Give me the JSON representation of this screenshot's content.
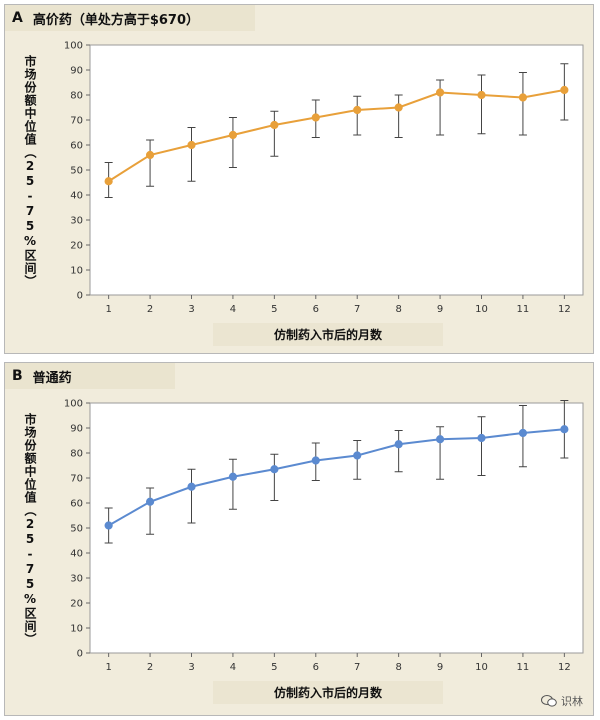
{
  "chart_data": [
    {
      "type": "line",
      "panel_label": "A",
      "title": "高价药（单处方高于$670）",
      "ylabel": "市场份额中位值（25-75%区间）",
      "xlabel": "仿制药入市后的月数",
      "x": [
        1,
        2,
        3,
        4,
        5,
        6,
        7,
        8,
        9,
        10,
        11,
        12
      ],
      "ylim": [
        0,
        100
      ],
      "yticks": [
        0,
        10,
        20,
        30,
        40,
        50,
        60,
        70,
        80,
        90,
        100
      ],
      "grid": false,
      "color": "#e8a03a",
      "series": [
        {
          "values": [
            45.5,
            56,
            60,
            64,
            68,
            71,
            74,
            75,
            81,
            80,
            79,
            82
          ],
          "err_low": [
            39,
            43.5,
            45.5,
            51,
            55.5,
            63,
            64,
            63,
            64,
            64.5,
            64,
            70
          ],
          "err_high": [
            53,
            62,
            67,
            71,
            73.5,
            78,
            79.5,
            80,
            86,
            88,
            89,
            92.5
          ]
        }
      ]
    },
    {
      "type": "line",
      "panel_label": "B",
      "title": "普通药",
      "ylabel": "市场份额中位值（25-75%区间）",
      "xlabel": "仿制药入市后的月数",
      "x": [
        1,
        2,
        3,
        4,
        5,
        6,
        7,
        8,
        9,
        10,
        11,
        12
      ],
      "ylim": [
        0,
        100
      ],
      "yticks": [
        0,
        10,
        20,
        30,
        40,
        50,
        60,
        70,
        80,
        90,
        100
      ],
      "grid": false,
      "color": "#5b8ad0",
      "series": [
        {
          "values": [
            51,
            60.5,
            66.5,
            70.5,
            73.5,
            77,
            79,
            83.5,
            85.5,
            86,
            88,
            89.5
          ],
          "err_low": [
            44,
            47.5,
            52,
            57.5,
            61,
            69,
            69.5,
            72.5,
            69.5,
            71,
            74.5,
            78
          ],
          "err_high": [
            58,
            66,
            73.5,
            77.5,
            79.5,
            84,
            85,
            89,
            90.5,
            94.5,
            99,
            101
          ]
        }
      ]
    }
  ],
  "watermark": {
    "text": "识林",
    "icon": "wechat-icon"
  }
}
